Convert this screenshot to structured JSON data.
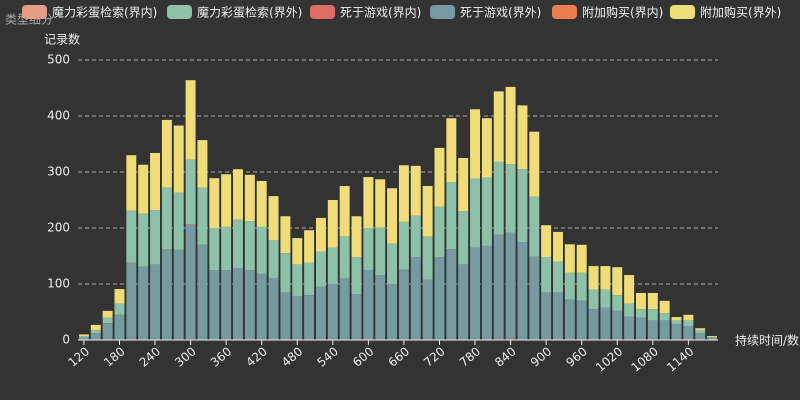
{
  "chart_data": {
    "type": "stacked_bar",
    "title": "类型细分",
    "y_axis_label": "记录数",
    "x_axis_label": "持续时间/数",
    "categories": [
      "120",
      null,
      null,
      "180",
      null,
      null,
      "240",
      null,
      null,
      "300",
      null,
      null,
      "360",
      null,
      null,
      "420",
      null,
      null,
      "480",
      null,
      null,
      "540",
      null,
      null,
      "600",
      null,
      null,
      "660",
      null,
      null,
      "720",
      null,
      null,
      "780",
      null,
      null,
      "840",
      null,
      null,
      "900",
      null,
      null,
      "960",
      null,
      null,
      "1020",
      null,
      null,
      "1080",
      null,
      null,
      "1140",
      null,
      null
    ],
    "series": [
      {
        "name": "魔力彩蛋检索(界内)",
        "color": "#e69d87",
        "values": [
          0,
          0,
          0,
          0,
          1,
          0,
          0,
          1,
          0,
          1,
          0,
          0,
          0,
          0,
          0,
          0,
          0,
          0,
          0,
          0,
          0,
          0,
          0,
          0,
          0,
          0,
          0,
          0,
          0,
          0,
          0,
          0,
          0,
          0,
          0,
          1,
          0,
          0,
          0,
          0,
          0,
          0,
          0,
          0,
          0,
          0,
          0,
          0,
          0,
          0,
          0,
          0,
          0,
          0
        ]
      },
      {
        "name": "魔力彩蛋检索(界外)",
        "color": "#8dc1a9",
        "values": [
          3,
          6,
          10,
          20,
          93,
          95,
          97,
          110,
          102,
          115,
          102,
          75,
          77,
          87,
          87,
          84,
          68,
          70,
          57,
          58,
          63,
          65,
          75,
          66,
          75,
          85,
          72,
          85,
          74,
          77,
          90,
          120,
          95,
          123,
          122,
          130,
          122,
          130,
          107,
          63,
          55,
          48,
          50,
          35,
          32,
          28,
          23,
          15,
          20,
          13,
          7,
          10,
          6,
          1
        ]
      },
      {
        "name": "死于游戏(界内)",
        "color": "#dd6b66",
        "values": [
          0,
          0,
          0,
          0,
          2,
          1,
          0,
          1,
          1,
          1,
          0,
          0,
          0,
          0,
          0,
          0,
          0,
          0,
          0,
          0,
          0,
          0,
          0,
          0,
          0,
          1,
          0,
          1,
          0,
          0,
          0,
          0,
          0,
          0,
          0,
          2,
          2,
          0,
          1,
          0,
          0,
          0,
          0,
          0,
          0,
          0,
          0,
          0,
          0,
          0,
          0,
          0,
          0,
          0
        ]
      },
      {
        "name": "死于游戏(界外)",
        "color": "#759aa0",
        "values": [
          4,
          12,
          30,
          45,
          135,
          130,
          135,
          160,
          160,
          205,
          170,
          125,
          125,
          128,
          125,
          118,
          110,
          85,
          78,
          80,
          95,
          100,
          110,
          82,
          125,
          115,
          100,
          125,
          148,
          108,
          148,
          162,
          135,
          165,
          168,
          185,
          190,
          175,
          148,
          85,
          85,
          72,
          70,
          55,
          58,
          52,
          42,
          40,
          35,
          35,
          28,
          25,
          12,
          4
        ]
      },
      {
        "name": "附加购买(界内)",
        "color": "#ea7e53",
        "values": [
          0,
          0,
          0,
          0,
          0,
          0,
          0,
          0,
          0,
          0,
          0,
          0,
          0,
          0,
          0,
          0,
          0,
          0,
          0,
          0,
          0,
          0,
          0,
          0,
          0,
          0,
          0,
          0,
          0,
          0,
          0,
          0,
          0,
          0,
          0,
          0,
          0,
          0,
          0,
          0,
          0,
          0,
          0,
          0,
          0,
          0,
          0,
          0,
          0,
          0,
          0,
          0,
          0,
          0
        ]
      },
      {
        "name": "附加购买(界外)",
        "color": "#eedd78",
        "values": [
          3,
          9,
          12,
          26,
          99,
          87,
          102,
          121,
          120,
          142,
          85,
          89,
          94,
          90,
          83,
          82,
          79,
          66,
          47,
          58,
          60,
          85,
          90,
          73,
          91,
          86,
          99,
          101,
          89,
          90,
          105,
          114,
          95,
          124,
          106,
          126,
          138,
          114,
          116,
          57,
          53,
          51,
          50,
          42,
          42,
          50,
          51,
          29,
          29,
          22,
          6,
          10,
          3,
          2
        ]
      }
    ],
    "ylim": [
      0,
      500
    ],
    "yticks": [
      0,
      100,
      200,
      300,
      400,
      500
    ],
    "grid": true
  }
}
